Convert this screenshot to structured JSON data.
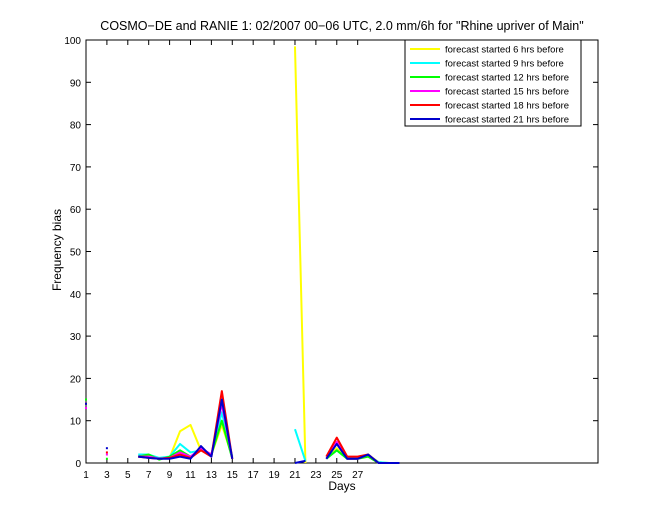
{
  "chart_data": {
    "type": "line",
    "title": "COSMO−DE and RANIE 1: 02/2007 00−06 UTC, 2.0 mm/6h for \"Rhine upriver of Main\"",
    "xlabel": "Days",
    "ylabel": "Frequency bias",
    "xlim": [
      1,
      50
    ],
    "ylim": [
      0,
      100
    ],
    "xticks": [
      1,
      3,
      5,
      7,
      9,
      11,
      13,
      15,
      17,
      19,
      21,
      23,
      25,
      27
    ],
    "yticks": [
      0,
      10,
      20,
      30,
      40,
      50,
      60,
      70,
      80,
      90,
      100
    ],
    "legend_position": "top-right",
    "series": [
      {
        "name": "forecast started 6 hrs before",
        "color": "#ffff00",
        "points": [
          [
            6,
            1.5
          ],
          [
            7,
            1.5
          ],
          [
            8,
            1.0
          ],
          [
            9,
            1.2
          ],
          [
            10,
            7.5
          ],
          [
            11,
            9.0
          ],
          [
            12,
            3.0
          ],
          [
            13,
            2.0
          ],
          [
            14,
            9.0
          ],
          [
            15,
            1.5
          ],
          [
            21,
            98.5
          ],
          [
            22,
            0
          ],
          [
            24,
            1.0
          ],
          [
            25,
            3.5
          ],
          [
            26,
            1.0
          ],
          [
            27,
            1.0
          ],
          [
            28,
            2.0
          ],
          [
            29,
            0.2
          ],
          [
            30,
            0
          ],
          [
            31,
            0
          ]
        ]
      },
      {
        "name": "forecast started 9 hrs before",
        "color": "#00ffff",
        "points": [
          [
            6,
            2.0
          ],
          [
            7,
            2.0
          ],
          [
            8,
            1.2
          ],
          [
            9,
            1.5
          ],
          [
            10,
            4.5
          ],
          [
            11,
            2.5
          ],
          [
            12,
            3.0
          ],
          [
            13,
            2.0
          ],
          [
            14,
            12.0
          ],
          [
            15,
            1.5
          ],
          [
            21,
            8.0
          ],
          [
            22,
            0.5
          ],
          [
            24,
            1.0
          ],
          [
            25,
            3.0
          ],
          [
            26,
            1.0
          ],
          [
            27,
            1.2
          ],
          [
            28,
            1.8
          ],
          [
            29,
            0.2
          ],
          [
            30,
            0
          ],
          [
            31,
            0
          ]
        ]
      },
      {
        "name": "forecast started 12 hrs before",
        "color": "#00ff00",
        "points": [
          [
            1,
            15.0
          ],
          [
            3,
            1.0
          ],
          [
            6,
            1.5
          ],
          [
            7,
            2.0
          ],
          [
            8,
            0.8
          ],
          [
            9,
            1.5
          ],
          [
            10,
            3.0
          ],
          [
            11,
            1.5
          ],
          [
            12,
            3.0
          ],
          [
            13,
            2.0
          ],
          [
            14,
            10.0
          ],
          [
            15,
            1.0
          ],
          [
            24,
            1.0
          ],
          [
            25,
            3.0
          ],
          [
            26,
            1.0
          ],
          [
            27,
            1.0
          ],
          [
            28,
            1.5
          ],
          [
            29,
            0
          ],
          [
            30,
            0
          ],
          [
            31,
            0
          ]
        ]
      },
      {
        "name": "forecast started 15 hrs before",
        "color": "#ff00ff",
        "points": [
          [
            1,
            13.0
          ],
          [
            3,
            2.0
          ],
          [
            6,
            1.5
          ],
          [
            7,
            1.5
          ],
          [
            8,
            1.0
          ],
          [
            9,
            1.2
          ],
          [
            10,
            2.5
          ],
          [
            11,
            1.5
          ],
          [
            12,
            3.5
          ],
          [
            13,
            2.0
          ],
          [
            14,
            14.0
          ],
          [
            15,
            1.0
          ],
          [
            24,
            1.0
          ],
          [
            25,
            5.0
          ],
          [
            26,
            1.0
          ],
          [
            27,
            1.0
          ],
          [
            28,
            2.0
          ],
          [
            29,
            0
          ],
          [
            30,
            0
          ],
          [
            31,
            0
          ]
        ]
      },
      {
        "name": "forecast started 18 hrs before",
        "color": "#ff0000",
        "points": [
          [
            1,
            14.0
          ],
          [
            3,
            2.5
          ],
          [
            6,
            1.5
          ],
          [
            7,
            1.2
          ],
          [
            8,
            1.0
          ],
          [
            9,
            1.2
          ],
          [
            10,
            2.0
          ],
          [
            11,
            1.2
          ],
          [
            12,
            3.0
          ],
          [
            13,
            1.5
          ],
          [
            14,
            17.0
          ],
          [
            15,
            1.0
          ],
          [
            24,
            1.5
          ],
          [
            25,
            6.0
          ],
          [
            26,
            1.5
          ],
          [
            27,
            1.5
          ],
          [
            28,
            2.0
          ],
          [
            29,
            0
          ],
          [
            30,
            0
          ],
          [
            31,
            0
          ]
        ]
      },
      {
        "name": "forecast started 21 hrs before",
        "color": "#0000cc",
        "points": [
          [
            1,
            14.0
          ],
          [
            3,
            3.5
          ],
          [
            6,
            1.5
          ],
          [
            7,
            1.2
          ],
          [
            8,
            1.0
          ],
          [
            9,
            1.0
          ],
          [
            10,
            1.5
          ],
          [
            11,
            1.0
          ],
          [
            12,
            4.0
          ],
          [
            13,
            1.5
          ],
          [
            14,
            15.0
          ],
          [
            15,
            1.0
          ],
          [
            21,
            0
          ],
          [
            22,
            0.5
          ],
          [
            24,
            1.0
          ],
          [
            25,
            4.5
          ],
          [
            26,
            1.0
          ],
          [
            27,
            1.0
          ],
          [
            28,
            2.0
          ],
          [
            29,
            0
          ],
          [
            30,
            0
          ],
          [
            31,
            0
          ]
        ]
      }
    ]
  }
}
